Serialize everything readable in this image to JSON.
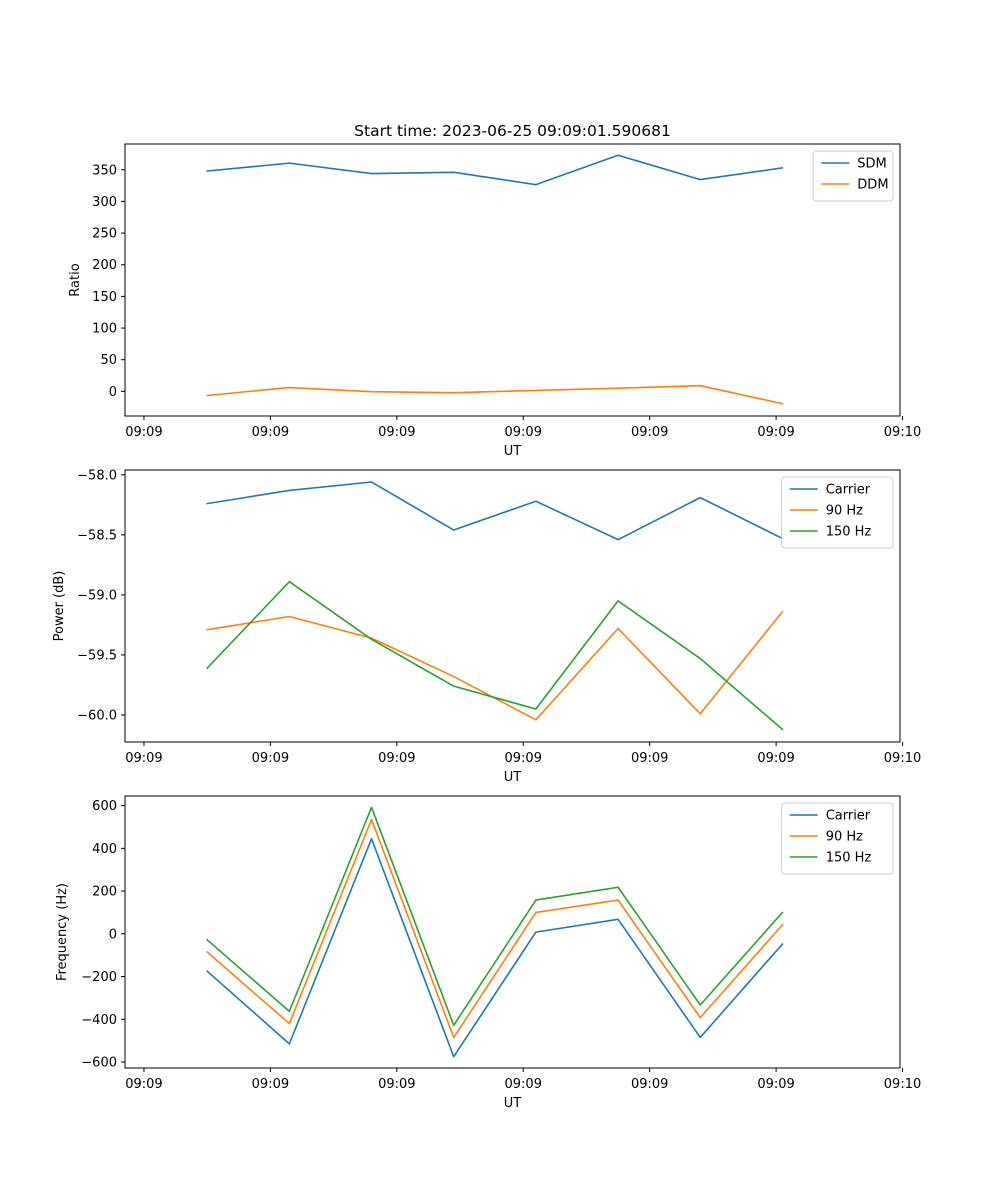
{
  "title": "Start time: 2023-06-25 09:09:01.590681",
  "chart_data": [
    {
      "type": "line",
      "xlabel": "UT",
      "ylabel": "Ratio",
      "x": [
        0.5,
        1.15,
        1.8,
        2.45,
        3.1,
        3.75,
        4.4,
        5.05
      ],
      "xlim": [
        -0.15,
        5.98
      ],
      "xticks": [
        0,
        1,
        2,
        3,
        4,
        5,
        6
      ],
      "xtick_labels": [
        "09:09",
        "09:09",
        "09:09",
        "09:09",
        "09:09",
        "09:09",
        "09:10"
      ],
      "ylim": [
        -38.9,
        390.7
      ],
      "yticks": [
        0,
        50,
        100,
        150,
        200,
        250,
        300,
        350
      ],
      "ytick_labels": [
        "0",
        "50",
        "100",
        "150",
        "200",
        "250",
        "300",
        "350"
      ],
      "legend": "top-right",
      "series": [
        {
          "name": "SDM",
          "color": "#1f77b4",
          "values": [
            348,
            360.5,
            344,
            346,
            326.5,
            373,
            334.5,
            353
          ]
        },
        {
          "name": "DDM",
          "color": "#ff7f0e",
          "values": [
            -6.5,
            6,
            -0.5,
            -2,
            1.5,
            5,
            9,
            -19.5
          ]
        }
      ]
    },
    {
      "type": "line",
      "xlabel": "UT",
      "ylabel": "Power (dB)",
      "x": [
        0.5,
        1.15,
        1.8,
        2.45,
        3.1,
        3.75,
        4.4,
        5.05
      ],
      "xlim": [
        -0.15,
        5.98
      ],
      "xticks": [
        0,
        1,
        2,
        3,
        4,
        5,
        6
      ],
      "xtick_labels": [
        "09:09",
        "09:09",
        "09:09",
        "09:09",
        "09:09",
        "09:09",
        "09:10"
      ],
      "ylim": [
        -60.225,
        -57.96
      ],
      "yticks": [
        -58.0,
        -58.5,
        -59.0,
        -59.5,
        -60.0
      ],
      "ytick_labels": [
        "−58.0",
        "−58.5",
        "−59.0",
        "−59.5",
        "−60.0"
      ],
      "legend": "top-right",
      "series": [
        {
          "name": "Carrier",
          "color": "#1f77b4",
          "values": [
            -58.24,
            -58.13,
            -58.06,
            -58.46,
            -58.22,
            -58.54,
            -58.19,
            -58.53
          ]
        },
        {
          "name": "90 Hz",
          "color": "#ff7f0e",
          "values": [
            -59.29,
            -59.18,
            -59.36,
            -59.68,
            -60.04,
            -59.28,
            -59.99,
            -59.14
          ]
        },
        {
          "name": "150 Hz",
          "color": "#2ca02c",
          "values": [
            -59.61,
            -58.89,
            -59.37,
            -59.76,
            -59.95,
            -59.05,
            -59.53,
            -60.12
          ]
        }
      ]
    },
    {
      "type": "line",
      "xlabel": "UT",
      "ylabel": "Frequency (Hz)",
      "x": [
        0.5,
        1.15,
        1.8,
        2.45,
        3.1,
        3.75,
        4.4,
        5.05
      ],
      "xlim": [
        -0.15,
        5.98
      ],
      "xticks": [
        0,
        1,
        2,
        3,
        4,
        5,
        6
      ],
      "xtick_labels": [
        "09:09",
        "09:09",
        "09:09",
        "09:09",
        "09:09",
        "09:09",
        "09:10"
      ],
      "ylim": [
        -628,
        645
      ],
      "yticks": [
        -600,
        -400,
        -200,
        0,
        200,
        400,
        600
      ],
      "ytick_labels": [
        "−600",
        "−400",
        "−200",
        "0",
        "200",
        "400",
        "600"
      ],
      "legend": "top-right",
      "series": [
        {
          "name": "Carrier",
          "color": "#1f77b4",
          "values": [
            -175,
            -515,
            445,
            -575,
            8,
            68,
            -485,
            -48
          ]
        },
        {
          "name": "90 Hz",
          "color": "#ff7f0e",
          "values": [
            -85,
            -420,
            535,
            -485,
            100,
            158,
            -392,
            42
          ]
        },
        {
          "name": "150 Hz",
          "color": "#2ca02c",
          "values": [
            -28,
            -363,
            592,
            -428,
            158,
            218,
            -333,
            100
          ]
        }
      ]
    }
  ]
}
